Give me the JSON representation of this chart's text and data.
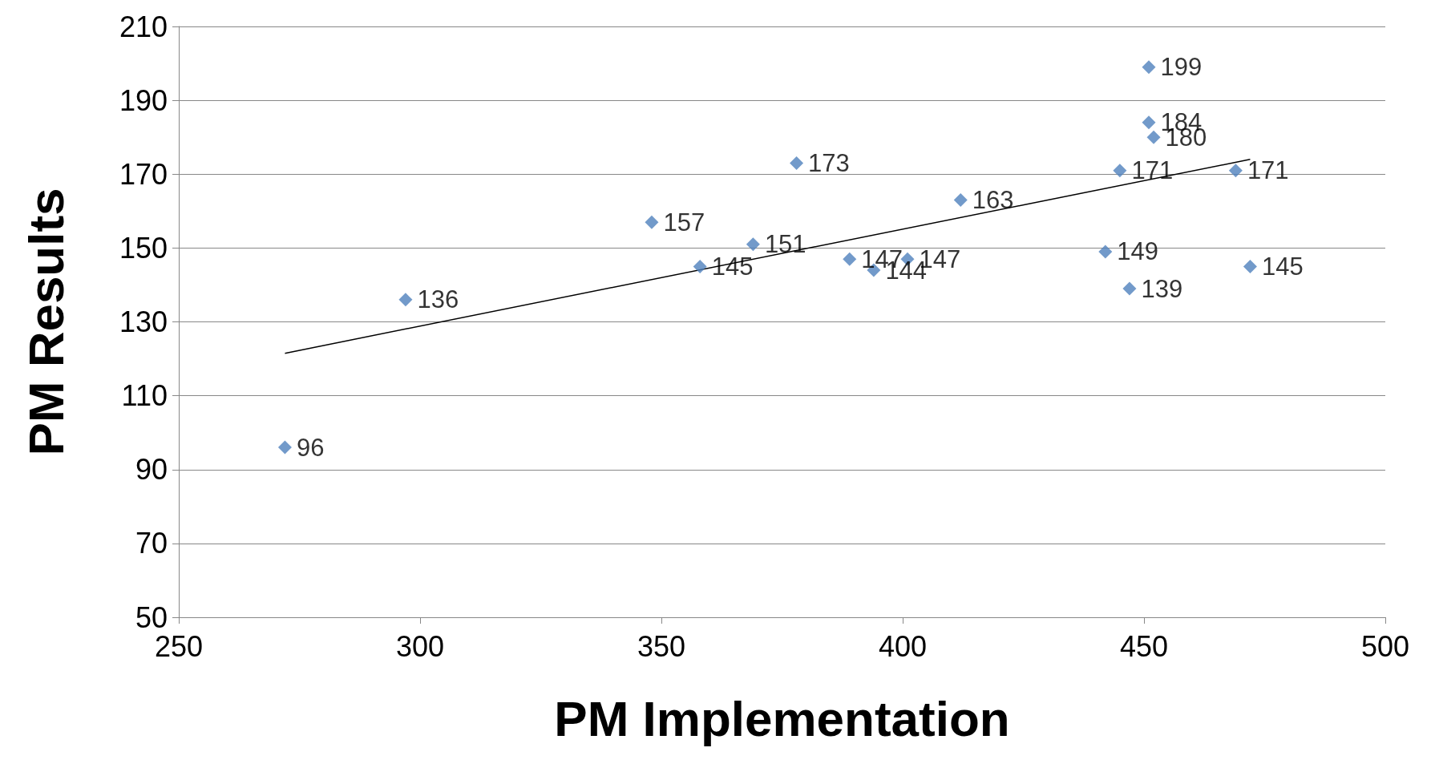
{
  "chart_data": {
    "type": "scatter",
    "xlabel": "PM Implementation",
    "ylabel": "PM Results",
    "xlim": [
      250,
      500
    ],
    "xticks": [
      250,
      300,
      350,
      400,
      450,
      500
    ],
    "ylim": [
      50,
      210
    ],
    "yticks": [
      50,
      70,
      90,
      110,
      130,
      150,
      170,
      190,
      210
    ],
    "grid": "y",
    "series": [
      {
        "color": "#4f81bd",
        "marker": "diamond",
        "value_labels": [
          "96",
          "136",
          "157",
          "145",
          "151",
          "173",
          "147",
          "144",
          "147",
          "163",
          "149",
          "171",
          "139",
          "199",
          "184",
          "180",
          "171",
          "145"
        ],
        "x": [
          272,
          297,
          348,
          358,
          369,
          378,
          389,
          394,
          401,
          412,
          442,
          445,
          447,
          451,
          451,
          452,
          469,
          472
        ],
        "values": [
          96,
          136,
          157,
          145,
          151,
          173,
          147,
          144,
          147,
          163,
          149,
          171,
          139,
          199,
          184,
          180,
          171,
          145
        ]
      },
      {
        "type": "line",
        "marker": "none",
        "color": "#000000",
        "x": [
          272,
          472
        ],
        "values": [
          121.5,
          174
        ]
      }
    ]
  }
}
